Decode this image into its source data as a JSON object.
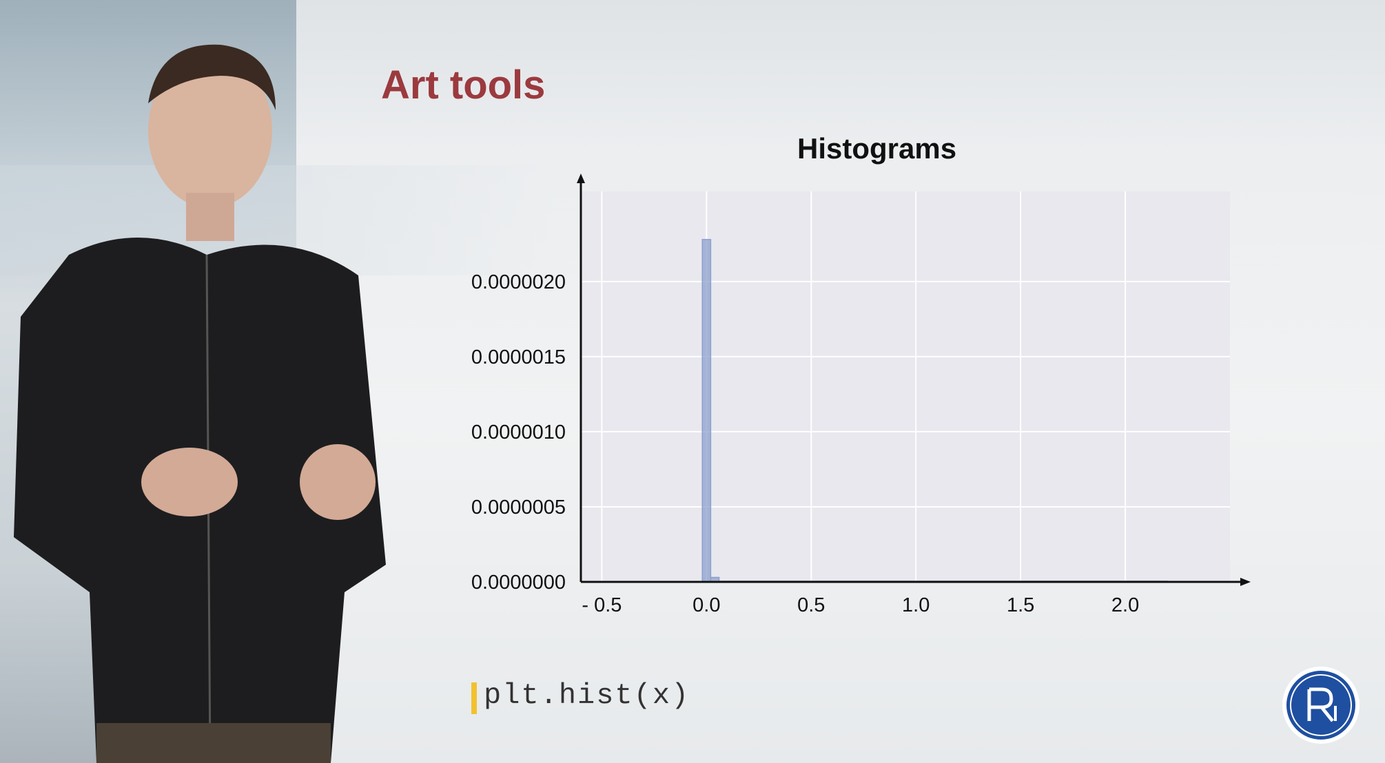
{
  "slide": {
    "title": "Art tools",
    "code": "plt.hist(x)"
  },
  "colors": {
    "title": "#9b3a3e",
    "bar": "#8da0cc",
    "plot_bg": "#e8e8ee",
    "grid": "#ffffff",
    "code_marker": "#f2c12e",
    "logo": "#1f4fa0"
  },
  "icons": {
    "logo": "university-logo-icon"
  },
  "chart_data": {
    "type": "bar",
    "title": "Histograms",
    "xlabel": "",
    "ylabel": "",
    "xlim": [
      -0.6,
      2.5
    ],
    "ylim": [
      0,
      2.6e-06
    ],
    "x_ticks": [
      -0.5,
      0.0,
      0.5,
      1.0,
      1.5,
      2.0
    ],
    "x_tick_labels": [
      "- 0.5",
      "0.0",
      "0.5",
      "1.0",
      "1.5",
      "2.0"
    ],
    "y_ticks": [
      0,
      5e-07,
      1e-06,
      1.5e-06,
      2e-06
    ],
    "y_tick_labels": [
      "0.0000000",
      "0.0000005",
      "0.0000010",
      "0.0000015",
      "0.0000020"
    ],
    "grid": true,
    "bins": [
      {
        "x0": -0.02,
        "x1": 0.02,
        "value": 2.28e-06
      },
      {
        "x0": 0.02,
        "x1": 0.06,
        "value": 3e-08
      },
      {
        "x0": 0.06,
        "x1": 2.2,
        "value": 5e-09
      }
    ],
    "series": [
      {
        "values": [
          2.28e-06,
          3e-08,
          5e-09
        ]
      }
    ]
  }
}
